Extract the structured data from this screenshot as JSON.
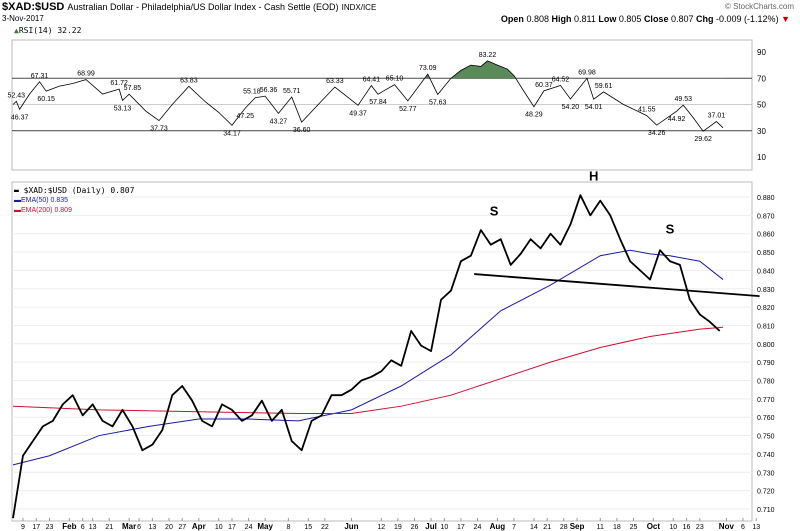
{
  "header": {
    "symbol": "$XAD:$USD",
    "description": "Australian Dollar - Philadelphia/US Dollar Index - Cash Settle (EOD)",
    "exchange": "INDX/ICE",
    "date": "3-Nov-2017",
    "brand": "© StockCharts.com",
    "open_label": "Open",
    "open": "0.808",
    "high_label": "High",
    "high": "0.811",
    "low_label": "Low",
    "low": "0.805",
    "close_label": "Close",
    "close": "0.807",
    "chg_label": "Chg",
    "chg": "-0.009 (-1.12%)",
    "down_arrow": "▼"
  },
  "colors": {
    "price": "#000000",
    "ema50": "#1a1aa8",
    "ema200": "#d01030",
    "rsi_fill": "#5a8a5a",
    "down": "#c00000"
  },
  "chart_data": [
    {
      "type": "line",
      "title": "RSI(14) 32.22",
      "ylim": [
        0,
        100
      ],
      "yticks": [
        10,
        30,
        50,
        70,
        90
      ],
      "reference_lines": [
        30,
        50,
        70
      ],
      "xlim": [
        0,
        226
      ],
      "points": [
        [
          0,
          50
        ],
        [
          1,
          52.43
        ],
        [
          2,
          46.37
        ],
        [
          5,
          58
        ],
        [
          8,
          67.31
        ],
        [
          10,
          60.15
        ],
        [
          14,
          64
        ],
        [
          18,
          66
        ],
        [
          22,
          68.99
        ],
        [
          27,
          58
        ],
        [
          32,
          61.72
        ],
        [
          33,
          53.13
        ],
        [
          35,
          57.85
        ],
        [
          40,
          45
        ],
        [
          44,
          37.73
        ],
        [
          48,
          50
        ],
        [
          53,
          63.83
        ],
        [
          58,
          52
        ],
        [
          62,
          44
        ],
        [
          66,
          34.17
        ],
        [
          70,
          47.25
        ],
        [
          73,
          55.18
        ],
        [
          76,
          56.36
        ],
        [
          80,
          43.27
        ],
        [
          84,
          55.71
        ],
        [
          87,
          36.6
        ],
        [
          92,
          50
        ],
        [
          97,
          63.33
        ],
        [
          104,
          49.37
        ],
        [
          108,
          64.41
        ],
        [
          110,
          57.84
        ],
        [
          115,
          65.1
        ],
        [
          119,
          52.77
        ],
        [
          125,
          73.09
        ],
        [
          128,
          57.63
        ],
        [
          132,
          70
        ],
        [
          135,
          76
        ],
        [
          138,
          80
        ],
        [
          141,
          79
        ],
        [
          143,
          83.22
        ],
        [
          146,
          80
        ],
        [
          149,
          77
        ],
        [
          151,
          72
        ],
        [
          154,
          60
        ],
        [
          157,
          48.29
        ],
        [
          160,
          60.37
        ],
        [
          165,
          64.52
        ],
        [
          168,
          54.2
        ],
        [
          173,
          69.98
        ],
        [
          175,
          54.01
        ],
        [
          178,
          59.61
        ],
        [
          184,
          50
        ],
        [
          191,
          41.55
        ],
        [
          194,
          34.26
        ],
        [
          200,
          44.92
        ],
        [
          202,
          49.53
        ],
        [
          205,
          40
        ],
        [
          208,
          29.62
        ],
        [
          212,
          37.01
        ],
        [
          214,
          32.22
        ]
      ],
      "labels": [
        {
          "day": 1,
          "value": 52.43,
          "text": "52.43",
          "kind": "peak"
        },
        {
          "day": 2,
          "value": 46.37,
          "text": "46.37",
          "kind": "trough"
        },
        {
          "day": 8,
          "value": 67.31,
          "text": "67.31",
          "kind": "peak"
        },
        {
          "day": 10,
          "value": 60.15,
          "text": "60.15",
          "kind": "trough"
        },
        {
          "day": 22,
          "value": 68.99,
          "text": "68.99",
          "kind": "peak"
        },
        {
          "day": 32,
          "value": 61.72,
          "text": "61.72",
          "kind": "peak"
        },
        {
          "day": 33,
          "value": 53.13,
          "text": "53.13",
          "kind": "trough"
        },
        {
          "day": 36,
          "value": 57.85,
          "text": "57.85",
          "kind": "peak"
        },
        {
          "day": 44,
          "value": 37.73,
          "text": "37.73",
          "kind": "trough"
        },
        {
          "day": 53,
          "value": 63.83,
          "text": "63.83",
          "kind": "peak"
        },
        {
          "day": 66,
          "value": 34.17,
          "text": "34.17",
          "kind": "trough"
        },
        {
          "day": 70,
          "value": 47.25,
          "text": "47.25",
          "kind": "trough"
        },
        {
          "day": 72,
          "value": 55.18,
          "text": "55.18",
          "kind": "peak"
        },
        {
          "day": 77,
          "value": 56.36,
          "text": "56.36",
          "kind": "peak"
        },
        {
          "day": 80,
          "value": 43.27,
          "text": "43.27",
          "kind": "trough"
        },
        {
          "day": 84,
          "value": 55.71,
          "text": "55.71",
          "kind": "peak"
        },
        {
          "day": 87,
          "value": 36.6,
          "text": "36.60",
          "kind": "trough"
        },
        {
          "day": 97,
          "value": 63.33,
          "text": "63.33",
          "kind": "peak"
        },
        {
          "day": 104,
          "value": 49.37,
          "text": "49.37",
          "kind": "trough"
        },
        {
          "day": 108,
          "value": 64.41,
          "text": "64.41",
          "kind": "peak"
        },
        {
          "day": 110,
          "value": 57.84,
          "text": "57.84",
          "kind": "trough"
        },
        {
          "day": 115,
          "value": 65.1,
          "text": "65.10",
          "kind": "peak"
        },
        {
          "day": 119,
          "value": 52.77,
          "text": "52.77",
          "kind": "trough"
        },
        {
          "day": 125,
          "value": 73.09,
          "text": "73.09",
          "kind": "peak"
        },
        {
          "day": 128,
          "value": 57.63,
          "text": "57.63",
          "kind": "trough"
        },
        {
          "day": 143,
          "value": 83.22,
          "text": "83.22",
          "kind": "peak"
        },
        {
          "day": 157,
          "value": 48.29,
          "text": "48.29",
          "kind": "trough"
        },
        {
          "day": 160,
          "value": 60.37,
          "text": "60.37",
          "kind": "peak"
        },
        {
          "day": 165,
          "value": 64.52,
          "text": "64.52",
          "kind": "peak"
        },
        {
          "day": 168,
          "value": 54.2,
          "text": "54.20",
          "kind": "trough"
        },
        {
          "day": 173,
          "value": 69.98,
          "text": "69.98",
          "kind": "peak"
        },
        {
          "day": 175,
          "value": 54.01,
          "text": "54.01",
          "kind": "trough"
        },
        {
          "day": 178,
          "value": 59.61,
          "text": "59.61",
          "kind": "peak"
        },
        {
          "day": 191,
          "value": 41.55,
          "text": "41.55",
          "kind": "peak"
        },
        {
          "day": 194,
          "value": 34.26,
          "text": "34.26",
          "kind": "trough"
        },
        {
          "day": 200,
          "value": 44.92,
          "text": "44.92",
          "kind": "trough"
        },
        {
          "day": 202,
          "value": 49.53,
          "text": "49.53",
          "kind": "peak"
        },
        {
          "day": 208,
          "value": 29.62,
          "text": "29.62",
          "kind": "trough"
        },
        {
          "day": 212,
          "value": 37.01,
          "text": "37.01",
          "kind": "peak"
        }
      ]
    },
    {
      "type": "line",
      "title": "$XAD:$USD (Daily) 0.807",
      "ylim": [
        0.705,
        0.889
      ],
      "xlim": [
        0,
        226
      ],
      "yticks": [
        0.71,
        0.72,
        0.73,
        0.74,
        0.75,
        0.76,
        0.77,
        0.78,
        0.79,
        0.8,
        0.81,
        0.82,
        0.83,
        0.84,
        0.85,
        0.86,
        0.87,
        0.88
      ],
      "price_step_days": 3,
      "price": [
        0.705,
        0.739,
        0.747,
        0.755,
        0.758,
        0.767,
        0.772,
        0.761,
        0.767,
        0.758,
        0.755,
        0.764,
        0.755,
        0.742,
        0.745,
        0.753,
        0.772,
        0.777,
        0.769,
        0.758,
        0.755,
        0.767,
        0.764,
        0.758,
        0.761,
        0.769,
        0.758,
        0.764,
        0.747,
        0.742,
        0.758,
        0.761,
        0.772,
        0.772,
        0.775,
        0.78,
        0.782,
        0.785,
        0.791,
        0.788,
        0.807,
        0.799,
        0.796,
        0.824,
        0.829,
        0.845,
        0.848,
        0.862,
        0.854,
        0.857,
        0.843,
        0.849,
        0.857,
        0.852,
        0.86,
        0.854,
        0.865,
        0.881,
        0.87,
        0.878,
        0.87,
        0.857,
        0.845,
        0.84,
        0.835,
        0.851,
        0.845,
        0.843,
        0.824,
        0.816,
        0.812,
        0.807
      ],
      "series": [
        {
          "name": "EMA(50) 0.835",
          "color": "#1a1aa8",
          "points": [
            [
              0,
              0.734
            ],
            [
              11,
              0.739
            ],
            [
              26,
              0.75
            ],
            [
              41,
              0.755
            ],
            [
              56,
              0.759
            ],
            [
              71,
              0.759
            ],
            [
              86,
              0.758
            ],
            [
              102,
              0.764
            ],
            [
              117,
              0.777
            ],
            [
              132,
              0.794
            ],
            [
              147,
              0.818
            ],
            [
              162,
              0.832
            ],
            [
              177,
              0.848
            ],
            [
              186,
              0.851
            ],
            [
              192,
              0.849
            ],
            [
              198,
              0.848
            ],
            [
              207,
              0.845
            ],
            [
              214,
              0.835
            ]
          ]
        },
        {
          "name": "EMA(200) 0.809",
          "color": "#d01030",
          "points": [
            [
              0,
              0.766
            ],
            [
              26,
              0.764
            ],
            [
              56,
              0.763
            ],
            [
              86,
              0.762
            ],
            [
              102,
              0.762
            ],
            [
              117,
              0.766
            ],
            [
              132,
              0.772
            ],
            [
              147,
              0.781
            ],
            [
              162,
              0.79
            ],
            [
              177,
              0.798
            ],
            [
              192,
              0.804
            ],
            [
              207,
              0.808
            ],
            [
              214,
              0.809
            ]
          ]
        }
      ],
      "annotations": [
        {
          "text": "S",
          "day": 145,
          "value": 0.87
        },
        {
          "text": "H",
          "day": 175,
          "value": 0.889
        },
        {
          "text": "S",
          "day": 198,
          "value": 0.86
        }
      ],
      "neckline": [
        [
          139,
          0.838
        ],
        [
          225,
          0.826
        ]
      ]
    }
  ],
  "xaxis": [
    {
      "t": "9",
      "d": 3
    },
    {
      "t": "17",
      "d": 7
    },
    {
      "t": "23",
      "d": 11
    },
    {
      "t": "Feb",
      "d": 17,
      "b": true
    },
    {
      "t": "6",
      "d": 21
    },
    {
      "t": "13",
      "d": 24
    },
    {
      "t": "21",
      "d": 29
    },
    {
      "t": "Mar",
      "d": 35,
      "b": true
    },
    {
      "t": "6",
      "d": 38
    },
    {
      "t": "13",
      "d": 42
    },
    {
      "t": "20",
      "d": 47
    },
    {
      "t": "27",
      "d": 51
    },
    {
      "t": "Apr",
      "d": 56,
      "b": true
    },
    {
      "t": "10",
      "d": 62
    },
    {
      "t": "17",
      "d": 66
    },
    {
      "t": "24",
      "d": 71
    },
    {
      "t": "May",
      "d": 76,
      "b": true
    },
    {
      "t": "8",
      "d": 83
    },
    {
      "t": "15",
      "d": 89
    },
    {
      "t": "22",
      "d": 94
    },
    {
      "t": "Jun",
      "d": 102,
      "b": true
    },
    {
      "t": "12",
      "d": 111
    },
    {
      "t": "19",
      "d": 116
    },
    {
      "t": "26",
      "d": 121
    },
    {
      "t": "Jul",
      "d": 126,
      "b": true
    },
    {
      "t": "10",
      "d": 130
    },
    {
      "t": "17",
      "d": 135
    },
    {
      "t": "24",
      "d": 140
    },
    {
      "t": "Aug",
      "d": 146,
      "b": true
    },
    {
      "t": "7",
      "d": 151
    },
    {
      "t": "14",
      "d": 157
    },
    {
      "t": "21",
      "d": 161
    },
    {
      "t": "28",
      "d": 166
    },
    {
      "t": "Sep",
      "d": 170,
      "b": true
    },
    {
      "t": "11",
      "d": 177
    },
    {
      "t": "18",
      "d": 182
    },
    {
      "t": "25",
      "d": 187
    },
    {
      "t": "Oct",
      "d": 193,
      "b": true
    },
    {
      "t": "10",
      "d": 199
    },
    {
      "t": "16",
      "d": 203
    },
    {
      "t": "23",
      "d": 207
    },
    {
      "t": "Nov",
      "d": 215,
      "b": true
    },
    {
      "t": "6",
      "d": 220
    },
    {
      "t": "13",
      "d": 224
    }
  ]
}
